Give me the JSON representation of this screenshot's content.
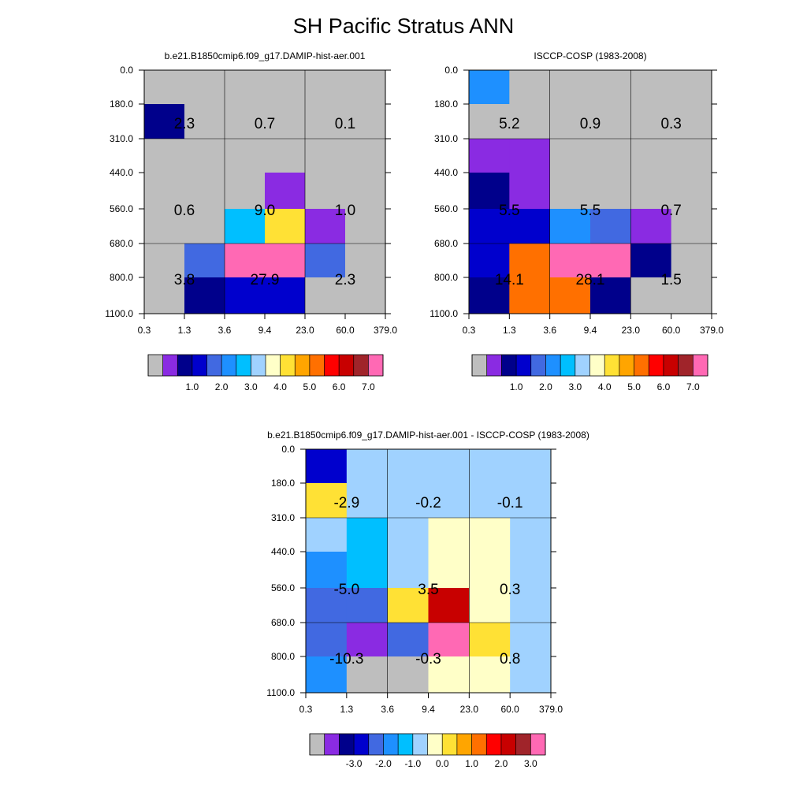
{
  "title": "SH Pacific Stratus ANN",
  "colors": {
    "abs_palette": [
      "#bebebe",
      "#8a2be2",
      "#00008b",
      "#0000cd",
      "#4169e1",
      "#1e90ff",
      "#00bfff",
      "#a0d2ff",
      "#ffffc8",
      "#ffe135",
      "#ffa500",
      "#ff7000",
      "#ff0000",
      "#c80000",
      "#a0242a",
      "#ff69b4"
    ],
    "diff_palette": [
      "#bebebe",
      "#8a2be2",
      "#00008b",
      "#0000cd",
      "#4169e1",
      "#1e90ff",
      "#00bfff",
      "#a0d2ff",
      "#ffffc8",
      "#ffe135",
      "#ffa500",
      "#ff7000",
      "#ff0000",
      "#c80000",
      "#a0242a",
      "#ff69b4"
    ]
  },
  "chart_data": [
    {
      "type": "heatmap",
      "title": "b.e21.B1850cmip6.f09_g17.DAMIP-hist-aer.001",
      "x_tick_labels": [
        "0.3",
        "1.3",
        "3.6",
        "9.4",
        "23.0",
        "60.0",
        "379.0"
      ],
      "y_tick_labels": [
        "0.0",
        "180.0",
        "310.0",
        "440.0",
        "560.0",
        "680.0",
        "800.0",
        "1100.0"
      ],
      "cell_color_index": [
        [
          0,
          0,
          0,
          0,
          0,
          0
        ],
        [
          2,
          0,
          0,
          0,
          0,
          0
        ],
        [
          0,
          0,
          0,
          0,
          0,
          0
        ],
        [
          0,
          0,
          0,
          1,
          0,
          0
        ],
        [
          0,
          0,
          6,
          9,
          1,
          0
        ],
        [
          0,
          4,
          15,
          15,
          4,
          0
        ],
        [
          0,
          2,
          3,
          3,
          0,
          0
        ]
      ],
      "group_labels": [
        [
          "2.3",
          "0.7",
          "0.1"
        ],
        [
          "0.6",
          "9.0",
          "1.0"
        ],
        [
          "3.8",
          "27.9",
          "2.3"
        ]
      ],
      "colorbar": {
        "palette": "abs_palette",
        "tick_labels": [
          "1.0",
          "2.0",
          "3.0",
          "4.0",
          "5.0",
          "6.0",
          "7.0"
        ]
      }
    },
    {
      "type": "heatmap",
      "title": "ISCCP-COSP (1983-2008)",
      "x_tick_labels": [
        "0.3",
        "1.3",
        "3.6",
        "9.4",
        "23.0",
        "60.0",
        "379.0"
      ],
      "y_tick_labels": [
        "0.0",
        "180.0",
        "310.0",
        "440.0",
        "560.0",
        "680.0",
        "800.0",
        "1100.0"
      ],
      "cell_color_index": [
        [
          5,
          0,
          0,
          0,
          0,
          0
        ],
        [
          0,
          0,
          0,
          0,
          0,
          0
        ],
        [
          1,
          1,
          0,
          0,
          0,
          0
        ],
        [
          2,
          1,
          0,
          0,
          0,
          0
        ],
        [
          3,
          3,
          5,
          4,
          1,
          0
        ],
        [
          3,
          11,
          15,
          15,
          2,
          0
        ],
        [
          2,
          11,
          11,
          2,
          0,
          0
        ]
      ],
      "group_labels": [
        [
          "5.2",
          "0.9",
          "0.3"
        ],
        [
          "5.5",
          "5.5",
          "0.7"
        ],
        [
          "14.1",
          "28.1",
          "1.5"
        ]
      ],
      "colorbar": {
        "palette": "abs_palette",
        "tick_labels": [
          "1.0",
          "2.0",
          "3.0",
          "4.0",
          "5.0",
          "6.0",
          "7.0"
        ]
      }
    },
    {
      "type": "heatmap",
      "title": "b.e21.B1850cmip6.f09_g17.DAMIP-hist-aer.001 - ISCCP-COSP (1983-2008)",
      "x_tick_labels": [
        "0.3",
        "1.3",
        "3.6",
        "9.4",
        "23.0",
        "60.0",
        "379.0"
      ],
      "y_tick_labels": [
        "0.0",
        "180.0",
        "310.0",
        "440.0",
        "560.0",
        "680.0",
        "800.0",
        "1100.0"
      ],
      "cell_color_index": [
        [
          3,
          7,
          7,
          7,
          7,
          7
        ],
        [
          9,
          7,
          7,
          7,
          7,
          7
        ],
        [
          7,
          6,
          7,
          8,
          8,
          7
        ],
        [
          5,
          6,
          7,
          8,
          8,
          7
        ],
        [
          4,
          4,
          9,
          13,
          8,
          7
        ],
        [
          4,
          1,
          4,
          15,
          9,
          7
        ],
        [
          5,
          0,
          0,
          8,
          8,
          7
        ]
      ],
      "group_labels": [
        [
          "-2.9",
          "-0.2",
          "-0.1"
        ],
        [
          "-5.0",
          "3.5",
          "0.3"
        ],
        [
          "-10.3",
          "-0.3",
          "0.8"
        ]
      ],
      "colorbar": {
        "palette": "diff_palette",
        "tick_labels": [
          "-3.0",
          "-2.0",
          "-1.0",
          "0.0",
          "1.0",
          "2.0",
          "3.0"
        ]
      }
    }
  ]
}
